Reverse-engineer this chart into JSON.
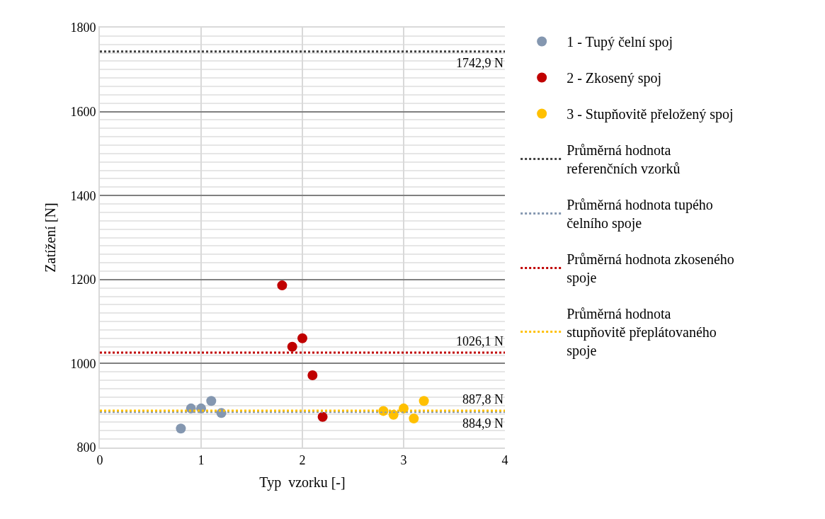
{
  "chart_data": {
    "type": "scatter",
    "xlabel": "Typ  vzorku [-]",
    "ylabel": "Zatížení [N]",
    "xlim": [
      0,
      4
    ],
    "xticks": [
      0,
      1,
      2,
      3,
      4
    ],
    "ylim": [
      800,
      1800
    ],
    "yticks": [
      800,
      1000,
      1200,
      1400,
      1600,
      1800
    ],
    "grid": true,
    "legend": "right",
    "marker": "circle",
    "series": [
      {
        "name": "1 - Tupý čelní spoj",
        "color": "#8497b0",
        "x": [
          0.8,
          0.9,
          1.0,
          1.1,
          1.2
        ],
        "values": [
          845,
          893,
          893,
          911,
          882
        ]
      },
      {
        "name": "2 - Zkosený spoj",
        "color": "#c00000",
        "x": [
          1.8,
          1.9,
          2.0,
          2.1,
          2.2
        ],
        "values": [
          1186,
          1040,
          1060,
          972,
          873
        ]
      },
      {
        "name": "3 - Stupňovitě přeložený spoj",
        "color": "#ffc000",
        "x": [
          2.8,
          2.9,
          3.0,
          3.1,
          3.2
        ],
        "values": [
          887,
          878,
          893,
          869,
          911
        ]
      },
      {
        "name": "Průměrná hodnota referenčních vzorků",
        "type": "line",
        "line_style": "dotted",
        "marker": "none",
        "color": "#404040",
        "x": [
          0,
          4
        ],
        "values": [
          1742.9,
          1742.9
        ]
      },
      {
        "name": "Průměrná hodnota tupého čelního spoje",
        "type": "line",
        "line_style": "dotted",
        "marker": "none",
        "color": "#8497b0",
        "x": [
          0,
          4
        ],
        "values": [
          884.9,
          884.9
        ]
      },
      {
        "name": "Průměrná hodnota zkoseného spoje",
        "type": "line",
        "line_style": "dotted",
        "marker": "none",
        "color": "#c00000",
        "x": [
          0,
          4
        ],
        "values": [
          1026.1,
          1026.1
        ]
      },
      {
        "name": "Průměrná hodnota stupňovitě přeplátovaného spoje",
        "type": "line",
        "line_style": "dotted",
        "marker": "none",
        "color": "#ffc000",
        "x": [
          0,
          4
        ],
        "values": [
          887.8,
          887.8
        ]
      }
    ],
    "annotations": [
      {
        "text": "1742,9 N",
        "y": 1742.9
      },
      {
        "text": "1026,1 N",
        "y": 1026.1
      },
      {
        "text": "887,8 N",
        "y": 887.8
      },
      {
        "text": "884,9 N",
        "y": 884.9
      }
    ]
  }
}
